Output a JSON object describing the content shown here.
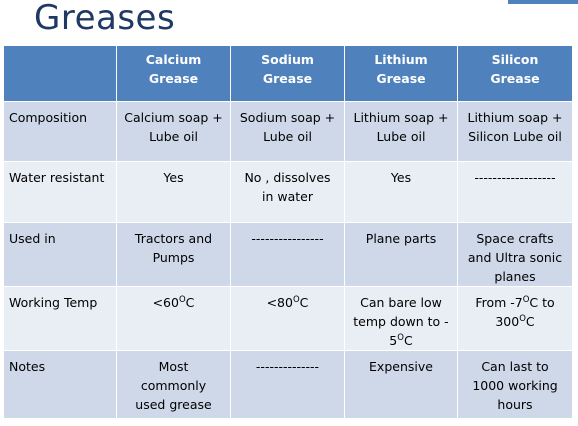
{
  "title": "Greases",
  "table": {
    "headers": [
      "",
      "Calcium\nGrease",
      "Sodium\nGrease",
      "Lithium\nGrease",
      "Silicon\nGrease"
    ],
    "rows": [
      {
        "label": "Composition",
        "cells": [
          "Calcium soap +\nLube oil",
          "Sodium soap +\nLube oil",
          "Lithium soap +\nLube oil",
          "Lithium soap +\nSilicon Lube oil"
        ]
      },
      {
        "label": "Water resistant",
        "cells": [
          "Yes",
          "No , dissolves\nin water",
          "Yes",
          "------------------"
        ]
      },
      {
        "label": "Used in",
        "cells": [
          "Tractors and\nPumps",
          "----------------",
          "Plane parts",
          "Space crafts\nand Ultra sonic\nplanes"
        ]
      },
      {
        "label": "Working Temp",
        "cells": [
          "<60",
          "<80",
          "Can bare low\ntemp down to -\n5",
          "From -7"
        ]
      },
      {
        "label": "Notes",
        "cells": [
          "Most\ncommonly\nused grease",
          "--------------",
          "Expensive",
          "Can last to\n1000 working\nhours"
        ]
      }
    ],
    "temp_parts": {
      "degree": "O",
      "unit": "C",
      "silicon_mid": "C to\n300"
    }
  },
  "colors": {
    "header_bg": "#4f81bd",
    "row_dark": "#cfd8e9",
    "row_light": "#e9edf4",
    "title": "#1f3864"
  }
}
